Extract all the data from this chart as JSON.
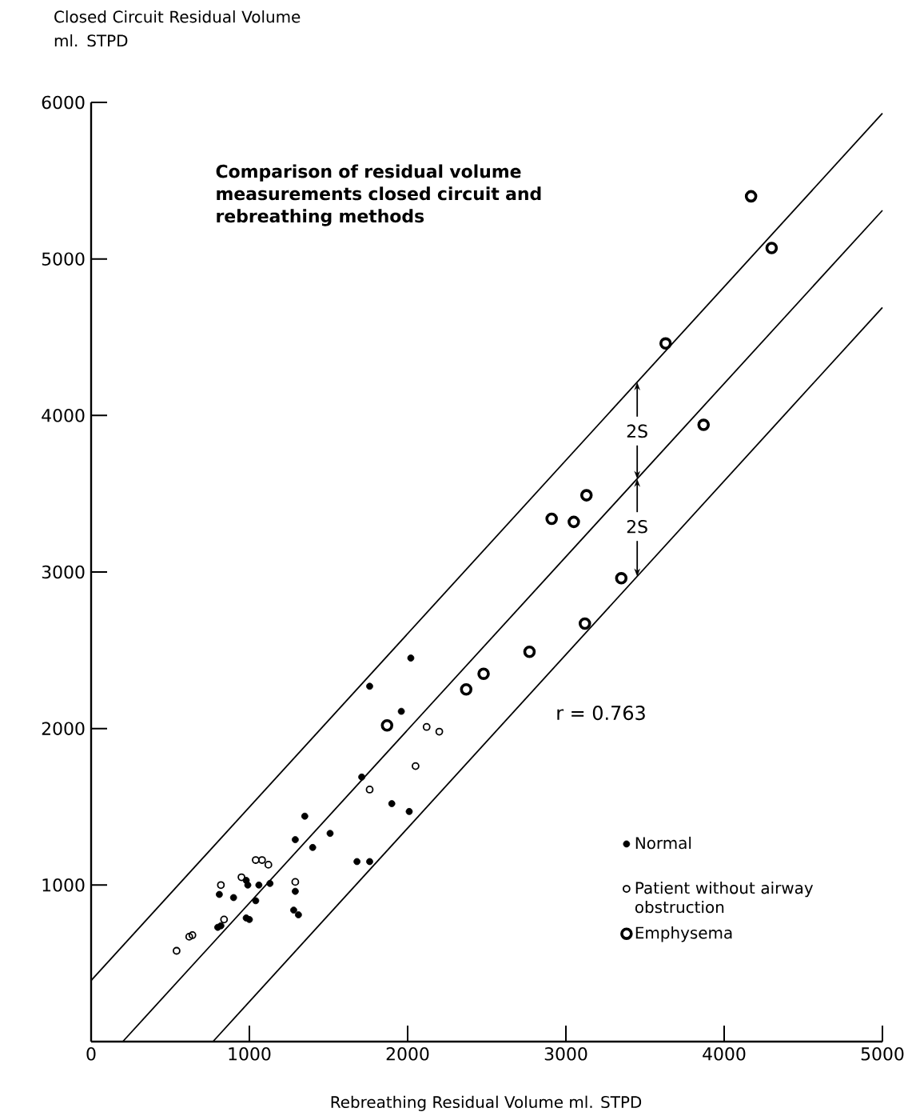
{
  "chart_data": {
    "type": "scatter",
    "title": "Comparison of residual volume measurements closed circuit and rebreathing methods",
    "xlabel": "Rebreathing Residual Volume ml. STPD",
    "ylabel": "Closed Circuit Residual Volume ml. STPD",
    "xlim": [
      0,
      5000
    ],
    "ylim": [
      0,
      6000
    ],
    "xticks": [
      0,
      1000,
      2000,
      3000,
      4000,
      5000
    ],
    "yticks": [
      {
        "value": 0,
        "label": null
      },
      1000,
      2000,
      3000,
      4000,
      5000,
      6000
    ],
    "legend": "bottom right",
    "grid": false,
    "annotations": [
      {
        "text": "2S",
        "x": 3450,
        "y": 3900
      },
      {
        "text": "2S",
        "x": 3450,
        "y": 3290
      },
      "r = 0.763"
    ],
    "series": [
      {
        "name": "Normal",
        "color": "#000000",
        "marker": "circle",
        "x": [
          810,
          800,
          820,
          900,
          980,
          990,
          980,
          1000,
          1060,
          1130,
          1040,
          1290,
          1280,
          1310,
          1290,
          1350,
          1400,
          1510,
          1710,
          1680,
          1760,
          1760,
          1960,
          2020,
          1900,
          2010
        ],
        "values": [
          940,
          730,
          740,
          920,
          1030,
          1000,
          790,
          780,
          1000,
          1010,
          900,
          960,
          840,
          810,
          1290,
          1440,
          1240,
          1330,
          1690,
          1150,
          1150,
          2270,
          2110,
          2450,
          1520,
          1470
        ]
      },
      {
        "name": "Patient without airway obstruction",
        "color": "#000000",
        "marker": "circle",
        "x": [
          540,
          620,
          640,
          820,
          840,
          950,
          1040,
          1080,
          1120,
          1290,
          1760,
          2120,
          2200,
          2050
        ],
        "values": [
          580,
          670,
          680,
          1000,
          780,
          1050,
          1160,
          1160,
          1130,
          1020,
          1610,
          2010,
          1980,
          1760
        ]
      },
      {
        "name": "Emphysema",
        "color": "#000000",
        "marker": "circle",
        "x": [
          4170,
          4300,
          3630,
          3870,
          3130,
          2910,
          3050,
          3350,
          3120,
          2770,
          2480,
          2370,
          1870
        ],
        "values": [
          5400,
          5070,
          4460,
          3940,
          3490,
          3340,
          3320,
          2960,
          2670,
          2490,
          2350,
          2250,
          2020
        ]
      },
      {
        "type": "line",
        "color": "#000000",
        "x": [
          200,
          5000
        ],
        "values": [
          0,
          5310
        ]
      },
      {
        "type": "line",
        "color": "#000000",
        "x": [
          0,
          5000
        ],
        "values": [
          390,
          5930
        ]
      },
      {
        "type": "line",
        "color": "#000000",
        "x": [
          770,
          5000
        ],
        "values": [
          0,
          4690
        ]
      }
    ]
  }
}
